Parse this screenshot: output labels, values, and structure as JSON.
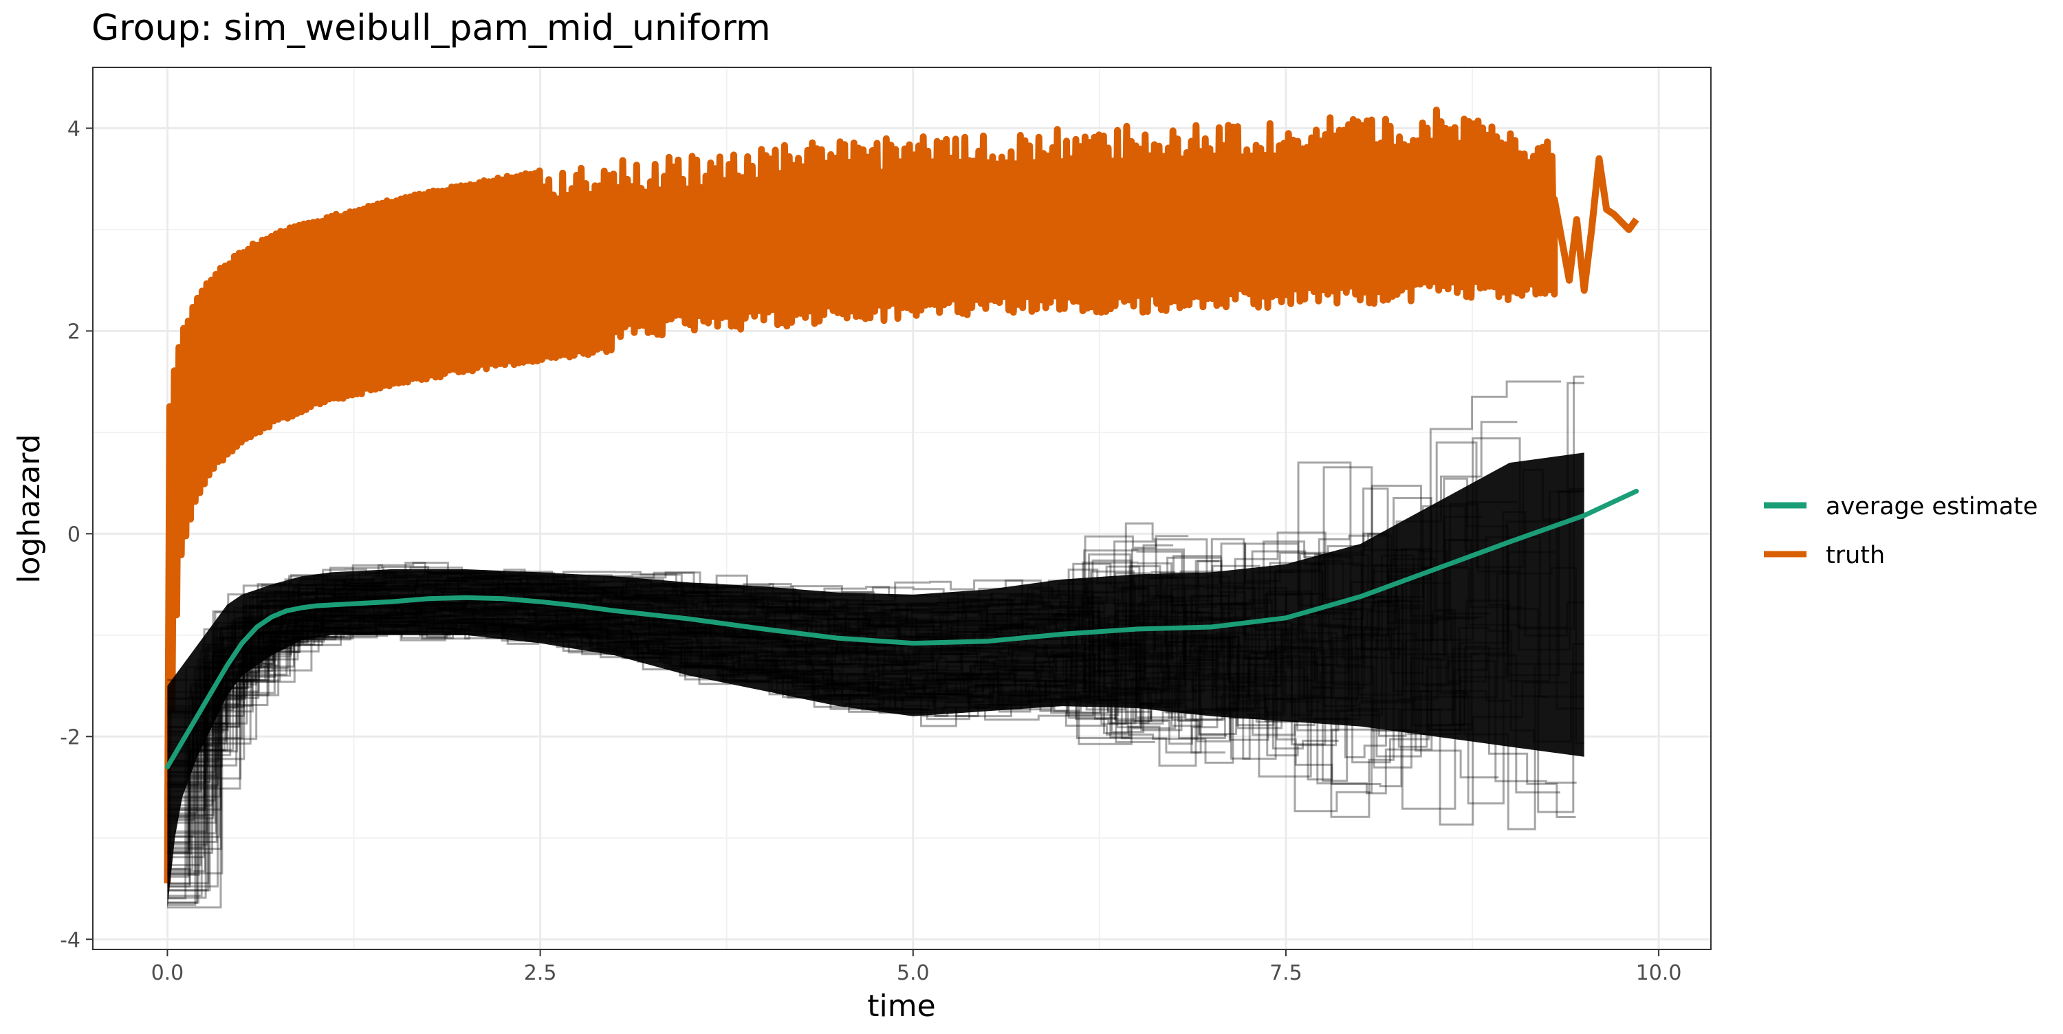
{
  "chart_data": {
    "type": "line",
    "title": "Group: sim_weibull_pam_mid_uniform",
    "xlabel": "time",
    "ylabel": "loghazard",
    "xlim": [
      -0.5,
      10.35
    ],
    "ylim": [
      -4.1,
      4.6
    ],
    "x_ticks": [
      {
        "value": 0.0,
        "label": "0.0"
      },
      {
        "value": 2.5,
        "label": "2.5"
      },
      {
        "value": 5.0,
        "label": "5.0"
      },
      {
        "value": 7.5,
        "label": "7.5"
      },
      {
        "value": 10.0,
        "label": "10.0"
      }
    ],
    "y_ticks": [
      {
        "value": -4,
        "label": "-4"
      },
      {
        "value": -2,
        "label": "-2"
      },
      {
        "value": 0,
        "label": "0"
      },
      {
        "value": 2,
        "label": "2"
      },
      {
        "value": 4,
        "label": "4"
      }
    ],
    "grid": true,
    "legend_position": "right",
    "series": [
      {
        "name": "average estimate",
        "color": "#1B9E77",
        "x": [
          0.0,
          0.1,
          0.2,
          0.3,
          0.4,
          0.5,
          0.6,
          0.7,
          0.8,
          0.9,
          1.0,
          1.25,
          1.5,
          1.75,
          2.0,
          2.25,
          2.5,
          2.75,
          3.0,
          3.5,
          4.0,
          4.5,
          5.0,
          5.5,
          6.0,
          6.5,
          7.0,
          7.5,
          8.0,
          8.5,
          9.0,
          9.5,
          9.85
        ],
        "y": [
          -2.3,
          -2.05,
          -1.8,
          -1.55,
          -1.3,
          -1.08,
          -0.92,
          -0.82,
          -0.76,
          -0.73,
          -0.71,
          -0.69,
          -0.67,
          -0.64,
          -0.63,
          -0.64,
          -0.67,
          -0.71,
          -0.76,
          -0.84,
          -0.94,
          -1.03,
          -1.08,
          -1.06,
          -0.99,
          -0.94,
          -0.92,
          -0.83,
          -0.62,
          -0.35,
          -0.08,
          0.18,
          0.42
        ]
      },
      {
        "name": "truth",
        "color": "#D95F02",
        "band_x": [
          0.0,
          0.02,
          0.05,
          0.1,
          0.2,
          0.3,
          0.5,
          0.75,
          1.0,
          1.5,
          2.0,
          2.5,
          3.0,
          3.5,
          4.0,
          4.5,
          5.0,
          5.5,
          6.0,
          6.5,
          7.0,
          7.5,
          8.0,
          8.5,
          9.0,
          9.3
        ],
        "band_low": [
          -3.65,
          -2.3,
          -1.1,
          -0.2,
          0.3,
          0.55,
          0.85,
          1.05,
          1.2,
          1.4,
          1.55,
          1.65,
          1.75,
          1.82,
          1.88,
          1.92,
          1.95,
          1.98,
          2.0,
          2.02,
          2.05,
          2.07,
          2.1,
          2.12,
          2.15,
          2.18
        ],
        "band_high": [
          0.9,
          1.4,
          1.7,
          2.0,
          2.35,
          2.55,
          2.8,
          3.0,
          3.1,
          3.3,
          3.45,
          3.6,
          3.68,
          3.75,
          3.82,
          3.88,
          3.92,
          3.96,
          4.0,
          4.03,
          4.05,
          4.08,
          4.12,
          4.2,
          4.0,
          3.85
        ],
        "tail_x": [
          9.3,
          9.4,
          9.45,
          9.5,
          9.55,
          9.6,
          9.65,
          9.7,
          9.8,
          9.85
        ],
        "tail_y": [
          3.3,
          2.5,
          3.1,
          2.4,
          3.0,
          3.7,
          3.2,
          3.15,
          3.0,
          3.1
        ]
      }
    ],
    "samples": {
      "color": "#000000",
      "band_x": [
        0.0,
        0.05,
        0.1,
        0.2,
        0.3,
        0.4,
        0.5,
        0.7,
        0.9,
        1.1,
        1.5,
        2.0,
        2.5,
        3.0,
        3.5,
        4.0,
        4.5,
        5.0,
        5.5,
        6.0,
        6.5,
        7.0,
        7.5,
        8.0,
        8.5,
        9.0,
        9.5
      ],
      "band_low": [
        -3.7,
        -3.0,
        -2.6,
        -2.2,
        -1.9,
        -1.6,
        -1.4,
        -1.2,
        -1.05,
        -1.0,
        -1.0,
        -1.0,
        -1.08,
        -1.2,
        -1.4,
        -1.55,
        -1.7,
        -1.8,
        -1.75,
        -1.7,
        -1.72,
        -1.8,
        -1.85,
        -1.9,
        -2.0,
        -2.1,
        -2.2
      ],
      "band_high": [
        -1.5,
        -1.4,
        -1.3,
        -1.1,
        -0.9,
        -0.7,
        -0.6,
        -0.5,
        -0.42,
        -0.38,
        -0.35,
        -0.35,
        -0.38,
        -0.42,
        -0.48,
        -0.52,
        -0.58,
        -0.6,
        -0.55,
        -0.45,
        -0.4,
        -0.38,
        -0.3,
        -0.1,
        0.3,
        0.7,
        0.8
      ]
    }
  }
}
